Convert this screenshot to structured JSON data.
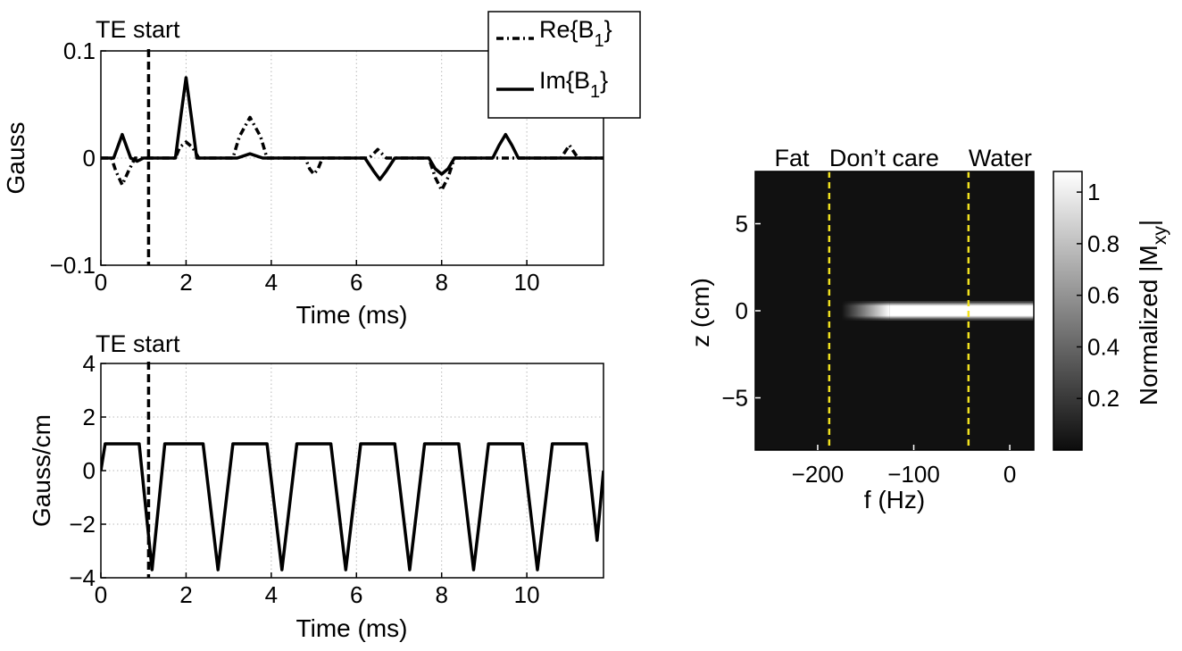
{
  "chart_data": [
    {
      "type": "line",
      "id": "rf-pulse",
      "title": "",
      "xlabel": "Time (ms)",
      "ylabel": "Gauss",
      "xlim": [
        0,
        11.8
      ],
      "ylim": [
        -0.1,
        0.1
      ],
      "xticks": [
        0,
        2,
        4,
        6,
        8,
        10
      ],
      "yticks": [
        -0.1,
        0,
        0.1
      ],
      "xtick_labels": [
        "0",
        "2",
        "4",
        "6",
        "8",
        "10"
      ],
      "ytick_labels": [
        "−0.1",
        "0",
        "0.1"
      ],
      "grid": true,
      "annotation": {
        "text": "TE start",
        "x": 1.12
      },
      "legend": {
        "position": "top-right",
        "entries": [
          "Re{B",
          "Im{B"
        ],
        "subscript": "1",
        "close": "}"
      },
      "series": [
        {
          "name": "Re{B1}",
          "style": "dash-dot",
          "x": [
            0,
            0.25,
            0.35,
            0.5,
            0.65,
            0.8,
            1.0,
            1.75,
            1.85,
            2.0,
            2.15,
            2.3,
            3.1,
            3.25,
            3.5,
            3.75,
            3.9,
            4.8,
            4.9,
            5.0,
            5.1,
            5.2,
            6.3,
            6.5,
            6.7,
            7.7,
            7.85,
            8.0,
            8.15,
            8.3,
            10.8,
            11.0,
            11.2,
            11.8
          ],
          "y": [
            0,
            0,
            -0.012,
            -0.025,
            -0.012,
            0,
            0,
            0,
            0.01,
            0.015,
            0.01,
            0,
            0,
            0.02,
            0.038,
            0.02,
            0,
            0,
            -0.01,
            -0.015,
            -0.01,
            0,
            0,
            0.008,
            0,
            0,
            -0.018,
            -0.03,
            -0.018,
            0,
            0,
            0.012,
            0,
            0
          ]
        },
        {
          "name": "Im{B1}",
          "style": "solid",
          "x": [
            0,
            0.3,
            0.5,
            0.7,
            0.85,
            1.0,
            1.75,
            1.88,
            2.0,
            2.12,
            2.25,
            3.2,
            3.5,
            3.8,
            6.2,
            6.4,
            6.55,
            6.7,
            6.9,
            7.7,
            7.85,
            8.0,
            8.15,
            8.3,
            9.2,
            9.35,
            9.5,
            9.65,
            9.8,
            11.8
          ],
          "y": [
            0,
            0,
            0.022,
            0,
            -0.003,
            0,
            0,
            0.04,
            0.075,
            0.04,
            0,
            0,
            0.004,
            0,
            0,
            -0.012,
            -0.02,
            -0.012,
            0,
            0,
            -0.01,
            -0.015,
            -0.01,
            0,
            0,
            0.012,
            0.022,
            0.012,
            0,
            0
          ]
        }
      ]
    },
    {
      "type": "line",
      "id": "gradient",
      "title": "",
      "xlabel": "Time (ms)",
      "ylabel": "Gauss/cm",
      "xlim": [
        0,
        11.8
      ],
      "ylim": [
        -4,
        4
      ],
      "xticks": [
        0,
        2,
        4,
        6,
        8,
        10
      ],
      "yticks": [
        -4,
        -2,
        0,
        2,
        4
      ],
      "xtick_labels": [
        "0",
        "2",
        "4",
        "6",
        "8",
        "10"
      ],
      "ytick_labels": [
        "−4",
        "−2",
        "0",
        "2",
        "4"
      ],
      "grid": true,
      "annotation": {
        "text": "TE start",
        "x": 1.12
      },
      "series": [
        {
          "name": "gradient",
          "style": "solid",
          "x": [
            0,
            0.1,
            0.9,
            1.2,
            1.5,
            2.4,
            2.75,
            3.1,
            3.9,
            4.25,
            4.6,
            5.4,
            5.75,
            6.1,
            6.9,
            7.25,
            7.6,
            8.4,
            8.75,
            9.1,
            9.9,
            10.25,
            10.6,
            11.4,
            11.65,
            11.8
          ],
          "y": [
            0,
            1,
            1,
            -3.7,
            1,
            1,
            -3.7,
            1,
            1,
            -3.7,
            1,
            1,
            -3.7,
            1,
            1,
            -3.7,
            1,
            1,
            -3.7,
            1,
            1,
            -3.7,
            1,
            1,
            -2.6,
            0
          ]
        }
      ]
    },
    {
      "type": "heatmap",
      "id": "excitation-profile",
      "title": "",
      "xlabel": "f (Hz)",
      "ylabel": "z (cm)",
      "xlim": [
        -265,
        25
      ],
      "ylim": [
        -8,
        8
      ],
      "xticks": [
        -200,
        -100,
        0
      ],
      "yticks": [
        -5,
        0,
        5
      ],
      "xtick_labels": [
        "−200",
        "−100",
        "0"
      ],
      "ytick_labels": [
        "−5",
        "0",
        "5"
      ],
      "region_labels": [
        {
          "text": "Fat",
          "x": -245
        },
        {
          "text": "Don’t care",
          "x": -188
        },
        {
          "text": "Water",
          "x": -43
        }
      ],
      "boundaries_hz": [
        -188,
        -43
      ],
      "band": {
        "z_center": 0,
        "z_halfwidth": 0.55,
        "f_ramp_start": -175,
        "f_ramp_end": -125
      },
      "colorbar": {
        "label": "Normalized |M",
        "label_sub": "xy",
        "label_close": "|",
        "range": [
          0,
          1.08
        ],
        "ticks": [
          0.2,
          0.4,
          0.6,
          0.8,
          1
        ],
        "tick_labels": [
          "0.2",
          "0.4",
          "0.6",
          "0.8",
          "1"
        ]
      }
    }
  ],
  "colors": {
    "line": "#000000",
    "boundary": "#f2e21f",
    "heatmap_low": "#111111",
    "heatmap_high": "#ffffff"
  }
}
